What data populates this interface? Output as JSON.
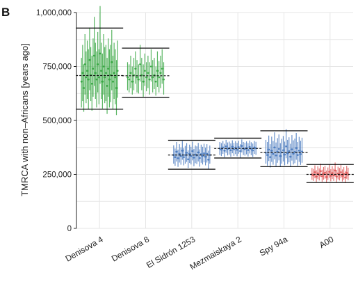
{
  "panel_label": "B",
  "chart_data": {
    "type": "scatter",
    "ylabel": "TMRCA with non–Africans [years ago]",
    "xlabel": "",
    "ylim": [
      0,
      1000000
    ],
    "yticks": [
      0,
      250000,
      500000,
      750000,
      1000000
    ],
    "ytick_labels": [
      "0",
      "250,000",
      "500,000",
      "750,000",
      "1,000,000"
    ],
    "grid": true,
    "legend": "none",
    "categories": [
      "Denisova 4",
      "Denisova 8",
      "El Sidrón 1253",
      "Mezmaiskaya 2",
      "Spy 94a",
      "A00"
    ],
    "groups": [
      {
        "name": "Denisova 4",
        "color": "#3aa845",
        "mean": 708000,
        "upper": 928000,
        "lower": 552000,
        "points": [
          [
            680000,
            560000,
            790000
          ],
          [
            720000,
            590000,
            850000
          ],
          [
            650000,
            540000,
            760000
          ],
          [
            760000,
            620000,
            900000
          ],
          [
            700000,
            580000,
            820000
          ],
          [
            730000,
            600000,
            870000
          ],
          [
            690000,
            550000,
            830000
          ],
          [
            780000,
            640000,
            930000
          ],
          [
            710000,
            590000,
            840000
          ],
          [
            670000,
            545000,
            800000
          ],
          [
            740000,
            610000,
            880000
          ],
          [
            800000,
            660000,
            980000
          ],
          [
            720000,
            600000,
            860000
          ],
          [
            690000,
            560000,
            820000
          ],
          [
            760000,
            630000,
            910000
          ],
          [
            700000,
            575000,
            830000
          ],
          [
            810000,
            670000,
            1030000
          ],
          [
            730000,
            600000,
            860000
          ],
          [
            680000,
            555000,
            810000
          ],
          [
            750000,
            620000,
            900000
          ],
          [
            700000,
            580000,
            840000
          ],
          [
            720000,
            590000,
            850000
          ],
          [
            660000,
            530000,
            790000
          ],
          [
            740000,
            610000,
            880000
          ],
          [
            690000,
            560000,
            830000
          ],
          [
            710000,
            585000,
            850000
          ],
          [
            770000,
            640000,
            920000
          ],
          [
            680000,
            550000,
            800000
          ],
          [
            720000,
            600000,
            860000
          ],
          [
            700000,
            575000,
            830000
          ],
          [
            650000,
            525000,
            780000
          ],
          [
            730000,
            605000,
            870000
          ]
        ]
      },
      {
        "name": "Denisova 8",
        "color": "#3aa845",
        "mean": 707000,
        "upper": 835000,
        "lower": 607000,
        "points": [
          [
            700000,
            640000,
            770000
          ],
          [
            690000,
            630000,
            760000
          ],
          [
            720000,
            650000,
            800000
          ],
          [
            680000,
            620000,
            750000
          ],
          [
            710000,
            640000,
            790000
          ],
          [
            740000,
            670000,
            820000
          ],
          [
            700000,
            630000,
            780000
          ],
          [
            690000,
            625000,
            760000
          ],
          [
            760000,
            680000,
            850000
          ],
          [
            710000,
            640000,
            790000
          ],
          [
            680000,
            610000,
            760000
          ],
          [
            730000,
            660000,
            810000
          ],
          [
            700000,
            635000,
            770000
          ],
          [
            720000,
            650000,
            800000
          ],
          [
            690000,
            620000,
            770000
          ],
          [
            750000,
            680000,
            830000
          ],
          [
            700000,
            630000,
            780000
          ],
          [
            710000,
            645000,
            790000
          ],
          [
            680000,
            615000,
            750000
          ],
          [
            730000,
            655000,
            820000
          ],
          [
            700000,
            630000,
            775000
          ],
          [
            720000,
            650000,
            800000
          ],
          [
            740000,
            670000,
            830000
          ],
          [
            690000,
            620000,
            770000
          ]
        ]
      },
      {
        "name": "El Sidrón 1253",
        "color": "#4c7cc0",
        "mean": 340000,
        "upper": 408000,
        "lower": 274000,
        "points": [
          [
            340000,
            300000,
            385000
          ],
          [
            330000,
            290000,
            370000
          ],
          [
            355000,
            310000,
            400000
          ],
          [
            325000,
            285000,
            365000
          ],
          [
            345000,
            305000,
            390000
          ],
          [
            335000,
            295000,
            375000
          ],
          [
            360000,
            318000,
            405000
          ],
          [
            330000,
            292000,
            372000
          ],
          [
            340000,
            300000,
            382000
          ],
          [
            350000,
            308000,
            395000
          ],
          [
            320000,
            280000,
            362000
          ],
          [
            345000,
            303000,
            388000
          ],
          [
            335000,
            296000,
            378000
          ],
          [
            358000,
            315000,
            402000
          ],
          [
            328000,
            288000,
            368000
          ],
          [
            342000,
            302000,
            384000
          ],
          [
            338000,
            298000,
            380000
          ],
          [
            352000,
            310000,
            396000
          ],
          [
            326000,
            286000,
            366000
          ],
          [
            344000,
            304000,
            388000
          ],
          [
            336000,
            296000,
            378000
          ],
          [
            348000,
            306000,
            392000
          ],
          [
            332000,
            292000,
            374000
          ],
          [
            346000,
            305000,
            390000
          ],
          [
            318000,
            276000,
            360000
          ],
          [
            340000,
            300000,
            384000
          ]
        ]
      },
      {
        "name": "Mezmaiskaya 2",
        "color": "#4c7cc0",
        "mean": 370000,
        "upper": 418000,
        "lower": 326000,
        "points": [
          [
            370000,
            340000,
            400000
          ],
          [
            365000,
            335000,
            395000
          ],
          [
            375000,
            345000,
            405000
          ],
          [
            360000,
            330000,
            392000
          ],
          [
            380000,
            350000,
            410000
          ],
          [
            368000,
            338000,
            398000
          ],
          [
            372000,
            342000,
            402000
          ],
          [
            362000,
            332000,
            394000
          ],
          [
            378000,
            348000,
            408000
          ],
          [
            366000,
            336000,
            396000
          ],
          [
            374000,
            344000,
            404000
          ],
          [
            364000,
            334000,
            396000
          ],
          [
            376000,
            346000,
            406000
          ],
          [
            358000,
            328000,
            390000
          ],
          [
            382000,
            352000,
            412000
          ],
          [
            370000,
            340000,
            400000
          ],
          [
            367000,
            337000,
            397000
          ],
          [
            373000,
            343000,
            403000
          ],
          [
            363000,
            333000,
            395000
          ],
          [
            377000,
            347000,
            407000
          ],
          [
            369000,
            339000,
            399000
          ],
          [
            361000,
            331000,
            393000
          ],
          [
            375000,
            345000,
            405000
          ],
          [
            371000,
            341000,
            401000
          ]
        ]
      },
      {
        "name": "Spy 94a",
        "color": "#4c7cc0",
        "mean": 352000,
        "upper": 452000,
        "lower": 286000,
        "points": [
          [
            350000,
            300000,
            410000
          ],
          [
            340000,
            290000,
            400000
          ],
          [
            365000,
            312000,
            430000
          ],
          [
            330000,
            282000,
            390000
          ],
          [
            360000,
            308000,
            425000
          ],
          [
            345000,
            295000,
            405000
          ],
          [
            375000,
            320000,
            445000
          ],
          [
            338000,
            288000,
            398000
          ],
          [
            355000,
            304000,
            418000
          ],
          [
            368000,
            315000,
            435000
          ],
          [
            335000,
            285000,
            395000
          ],
          [
            352000,
            300000,
            415000
          ],
          [
            362000,
            310000,
            428000
          ],
          [
            342000,
            292000,
            402000
          ],
          [
            380000,
            325000,
            460000
          ],
          [
            348000,
            298000,
            410000
          ],
          [
            358000,
            306000,
            422000
          ],
          [
            332000,
            284000,
            392000
          ],
          [
            366000,
            314000,
            432000
          ],
          [
            346000,
            296000,
            408000
          ],
          [
            354000,
            302000,
            416000
          ],
          [
            372000,
            318000,
            442000
          ],
          [
            340000,
            290000,
            400000
          ],
          [
            360000,
            308000,
            424000
          ],
          [
            344000,
            294000,
            406000
          ],
          [
            356000,
            304000,
            420000
          ]
        ]
      },
      {
        "name": "A00",
        "color": "#e05a5a",
        "mean": 250000,
        "upper": 296000,
        "lower": 212000,
        "points": [
          [
            250000,
            225000,
            280000
          ],
          [
            245000,
            220000,
            275000
          ],
          [
            260000,
            232000,
            292000
          ],
          [
            240000,
            215000,
            270000
          ],
          [
            255000,
            228000,
            288000
          ],
          [
            248000,
            222000,
            278000
          ],
          [
            265000,
            238000,
            300000
          ],
          [
            242000,
            216000,
            272000
          ],
          [
            252000,
            226000,
            284000
          ],
          [
            258000,
            230000,
            290000
          ],
          [
            238000,
            212000,
            268000
          ],
          [
            250000,
            224000,
            282000
          ],
          [
            262000,
            234000,
            296000
          ],
          [
            244000,
            218000,
            274000
          ],
          [
            256000,
            229000,
            288000
          ],
          [
            246000,
            220000,
            276000
          ],
          [
            268000,
            240000,
            305000
          ],
          [
            240000,
            214000,
            270000
          ],
          [
            254000,
            227000,
            286000
          ],
          [
            248000,
            222000,
            280000
          ],
          [
            260000,
            232000,
            294000
          ],
          [
            243000,
            217000,
            273000
          ],
          [
            252000,
            226000,
            284000
          ],
          [
            236000,
            210000,
            266000
          ],
          [
            257000,
            230000,
            290000
          ],
          [
            249000,
            223000,
            281000
          ]
        ]
      }
    ]
  }
}
